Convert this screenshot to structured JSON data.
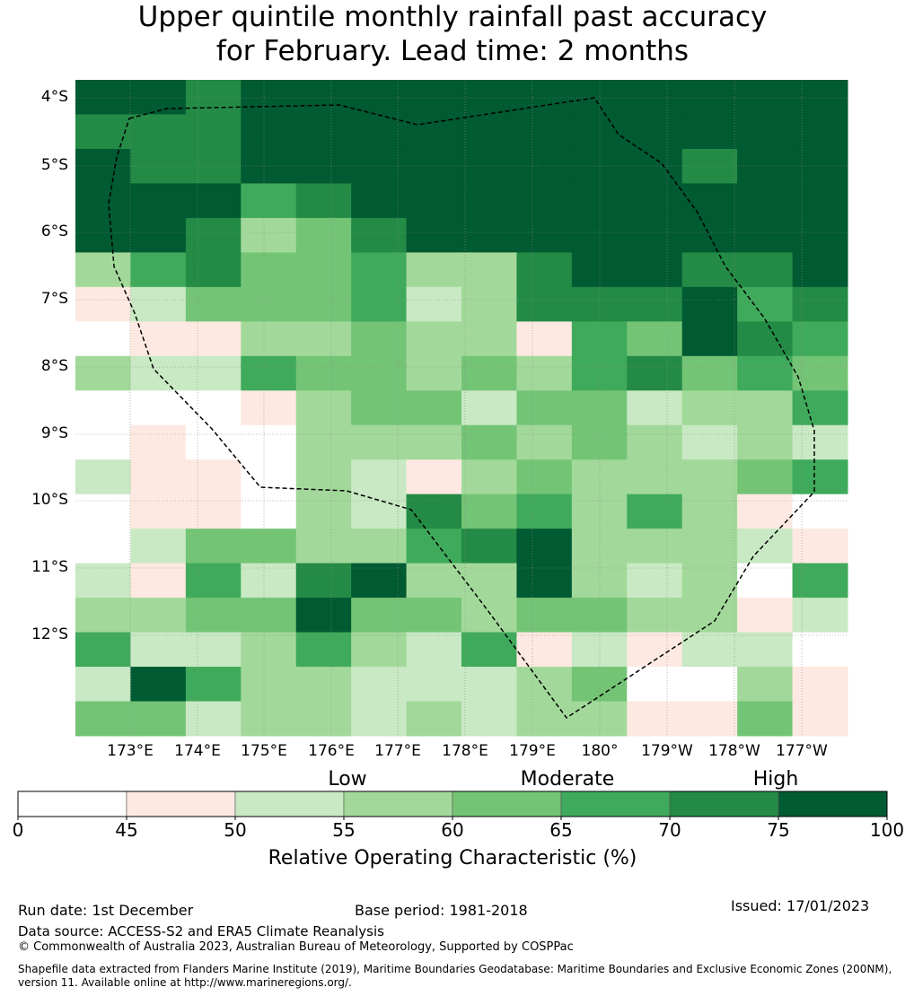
{
  "title": {
    "line1": "Upper quintile monthly rainfall past accuracy",
    "line2": "for February. Lead time: 2 months"
  },
  "map": {
    "lat_labels": [
      "4°S",
      "5°S",
      "6°S",
      "7°S",
      "8°S",
      "9°S",
      "10°S",
      "11°S",
      "12°S"
    ],
    "lon_labels": [
      "173°E",
      "174°E",
      "175°E",
      "176°E",
      "177°E",
      "178°E",
      "179°E",
      "180°",
      "179°W",
      "178°W",
      "177°W"
    ],
    "boundary_line": "dashed",
    "grid": [
      [
        8,
        8,
        7,
        8,
        8,
        8,
        8,
        8,
        8,
        8,
        8,
        8,
        8,
        8
      ],
      [
        7,
        7,
        7,
        8,
        8,
        8,
        8,
        8,
        8,
        8,
        8,
        8,
        8,
        8
      ],
      [
        8,
        7,
        7,
        8,
        8,
        8,
        8,
        8,
        8,
        8,
        8,
        7,
        8,
        8
      ],
      [
        8,
        8,
        8,
        6,
        7,
        8,
        8,
        8,
        8,
        8,
        8,
        8,
        8,
        8
      ],
      [
        8,
        8,
        7,
        4,
        5,
        7,
        8,
        8,
        8,
        8,
        8,
        8,
        8,
        8
      ],
      [
        4,
        6,
        7,
        5,
        5,
        6,
        4,
        4,
        7,
        8,
        8,
        7,
        7,
        8
      ],
      [
        2,
        3,
        5,
        5,
        5,
        6,
        3,
        4,
        7,
        7,
        7,
        8,
        6,
        7
      ],
      [
        1,
        2,
        2,
        4,
        4,
        5,
        4,
        4,
        2,
        6,
        5,
        8,
        7,
        6
      ],
      [
        4,
        3,
        3,
        6,
        5,
        5,
        4,
        5,
        4,
        6,
        7,
        5,
        6,
        5
      ],
      [
        1,
        1,
        1,
        2,
        4,
        5,
        5,
        3,
        5,
        5,
        3,
        4,
        4,
        6
      ],
      [
        1,
        2,
        1,
        1,
        4,
        4,
        4,
        5,
        4,
        5,
        4,
        3,
        4,
        3
      ],
      [
        3,
        2,
        2,
        1,
        4,
        3,
        2,
        4,
        5,
        4,
        4,
        4,
        5,
        6
      ],
      [
        1,
        2,
        2,
        1,
        4,
        3,
        7,
        5,
        6,
        4,
        6,
        4,
        2,
        1
      ],
      [
        1,
        3,
        5,
        5,
        4,
        4,
        6,
        7,
        8,
        4,
        4,
        4,
        3,
        2
      ],
      [
        3,
        2,
        6,
        3,
        7,
        8,
        4,
        4,
        8,
        4,
        3,
        4,
        1,
        6
      ],
      [
        4,
        4,
        5,
        5,
        8,
        5,
        5,
        4,
        5,
        5,
        4,
        4,
        2,
        3
      ],
      [
        6,
        3,
        3,
        4,
        6,
        4,
        3,
        6,
        2,
        3,
        2,
        3,
        3,
        1
      ],
      [
        3,
        8,
        6,
        4,
        4,
        3,
        3,
        3,
        4,
        5,
        1,
        1,
        4,
        2
      ],
      [
        5,
        5,
        3,
        4,
        4,
        3,
        4,
        3,
        4,
        4,
        2,
        2,
        5,
        2
      ]
    ]
  },
  "legend": {
    "category_labels": [
      "Low",
      "Moderate",
      "High"
    ],
    "tick_labels": [
      "0",
      "45",
      "50",
      "55",
      "60",
      "65",
      "70",
      "75",
      "100"
    ],
    "bin_colors": [
      "#ffffff",
      "#fde9e1",
      "#c8e9c3",
      "#a2d99a",
      "#74c476",
      "#3faa5b",
      "#238b45",
      "#005a32"
    ],
    "axis_label": "Relative Operating Characteristic (%)"
  },
  "footer": {
    "run_date": "Run date: 1st December",
    "base_period": "Base period: 1981-2018",
    "issued": "Issued: 17/01/2023",
    "data_source": "Data source: ACCESS-S2 and ERA5 Climate Reanalysis",
    "copyright": "© Commonwealth of Australia 2023, Australian Bureau of Meteorology, Supported by COSPPac",
    "shapefile": "Shapefile data extracted from Flanders Marine Institute (2019), Maritime Boundaries Geodatabase: Maritime Boundaries and Exclusive Economic Zones (200NM), version 11. Available online at http://www.marineregions.org/."
  }
}
